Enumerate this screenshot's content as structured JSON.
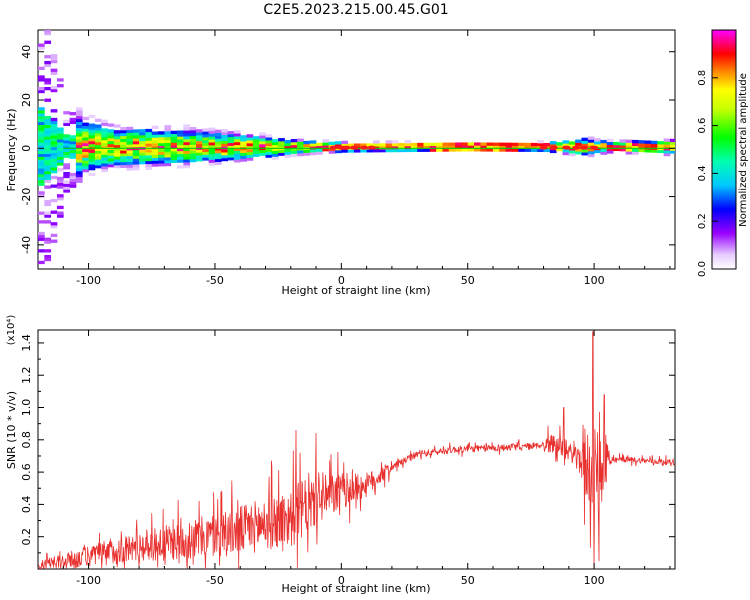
{
  "title": "C2E5.2023.215.00.45.G01",
  "chart_data": [
    {
      "type": "heatmap",
      "title": "C2E5.2023.215.00.45.G01",
      "xlabel": "Height of straight line (km)",
      "ylabel": "Frequency (Hz)",
      "xlim": [
        -120,
        132
      ],
      "ylim": [
        -50,
        49
      ],
      "xticks": [
        -100,
        -50,
        0,
        50,
        100
      ],
      "yticks": [
        -40,
        -20,
        0,
        20,
        40
      ],
      "colorbar": {
        "label": "Normalized spectral amplitude",
        "range": [
          0,
          1
        ],
        "ticks": [
          "0.0",
          "0.2",
          "0.4",
          "0.6",
          "0.8"
        ],
        "colors": [
          "#ffffff",
          "#d9b3ff",
          "#8000ff",
          "#0000ff",
          "#00ffff",
          "#00ff00",
          "#ffff00",
          "#ff8000",
          "#ff0000",
          "#ff00ff"
        ]
      },
      "band_halfwidth_hz": [
        {
          "x": -120,
          "hw": 46
        },
        {
          "x": -110,
          "hw": 14
        },
        {
          "x": -90,
          "hw": 9
        },
        {
          "x": -60,
          "hw": 8
        },
        {
          "x": -40,
          "hw": 6
        },
        {
          "x": -20,
          "hw": 3.5
        },
        {
          "x": 0,
          "hw": 2.2
        },
        {
          "x": 50,
          "hw": 1.8
        },
        {
          "x": 80,
          "hw": 2
        },
        {
          "x": 95,
          "hw": 4
        },
        {
          "x": 105,
          "hw": 2.5
        },
        {
          "x": 132,
          "hw": 3.5
        }
      ]
    },
    {
      "type": "line",
      "xlabel": "Height of straight line (km)",
      "ylabel": "SNR (10 * v/v)",
      "yscale_label": "(x10⁴)",
      "xlim": [
        -120,
        132
      ],
      "ylim": [
        0,
        1.48
      ],
      "xticks": [
        -100,
        -50,
        0,
        50,
        100
      ],
      "yticks": [
        0.2,
        0.4,
        0.6,
        0.8,
        1.0,
        1.2,
        1.4
      ],
      "ytick_labels": [
        "0.2",
        "0.4",
        "0.6",
        "0.8",
        "1.0",
        "1.2",
        "1.4"
      ],
      "color": "#e8312f",
      "trend": [
        {
          "x": -120,
          "y": 0.01
        },
        {
          "x": -100,
          "y": 0.08
        },
        {
          "x": -80,
          "y": 0.14
        },
        {
          "x": -60,
          "y": 0.18
        },
        {
          "x": -40,
          "y": 0.24
        },
        {
          "x": -20,
          "y": 0.32
        },
        {
          "x": -10,
          "y": 0.42
        },
        {
          "x": 0,
          "y": 0.48
        },
        {
          "x": 10,
          "y": 0.52
        },
        {
          "x": 20,
          "y": 0.63
        },
        {
          "x": 30,
          "y": 0.71
        },
        {
          "x": 45,
          "y": 0.74
        },
        {
          "x": 60,
          "y": 0.75
        },
        {
          "x": 75,
          "y": 0.76
        },
        {
          "x": 85,
          "y": 0.78
        },
        {
          "x": 100,
          "y": 0.62
        },
        {
          "x": 110,
          "y": 0.68
        },
        {
          "x": 132,
          "y": 0.66
        }
      ],
      "peaks": [
        {
          "x": -18,
          "y": 0.86
        },
        {
          "x": -10,
          "y": 0.84
        },
        {
          "x": 88,
          "y": 1.0
        },
        {
          "x": 99.5,
          "y": 1.47
        },
        {
          "x": 104,
          "y": 1.08
        }
      ],
      "dips": [
        {
          "x": 100,
          "y": 0.0
        },
        {
          "x": 102,
          "y": 0.05
        }
      ]
    }
  ]
}
